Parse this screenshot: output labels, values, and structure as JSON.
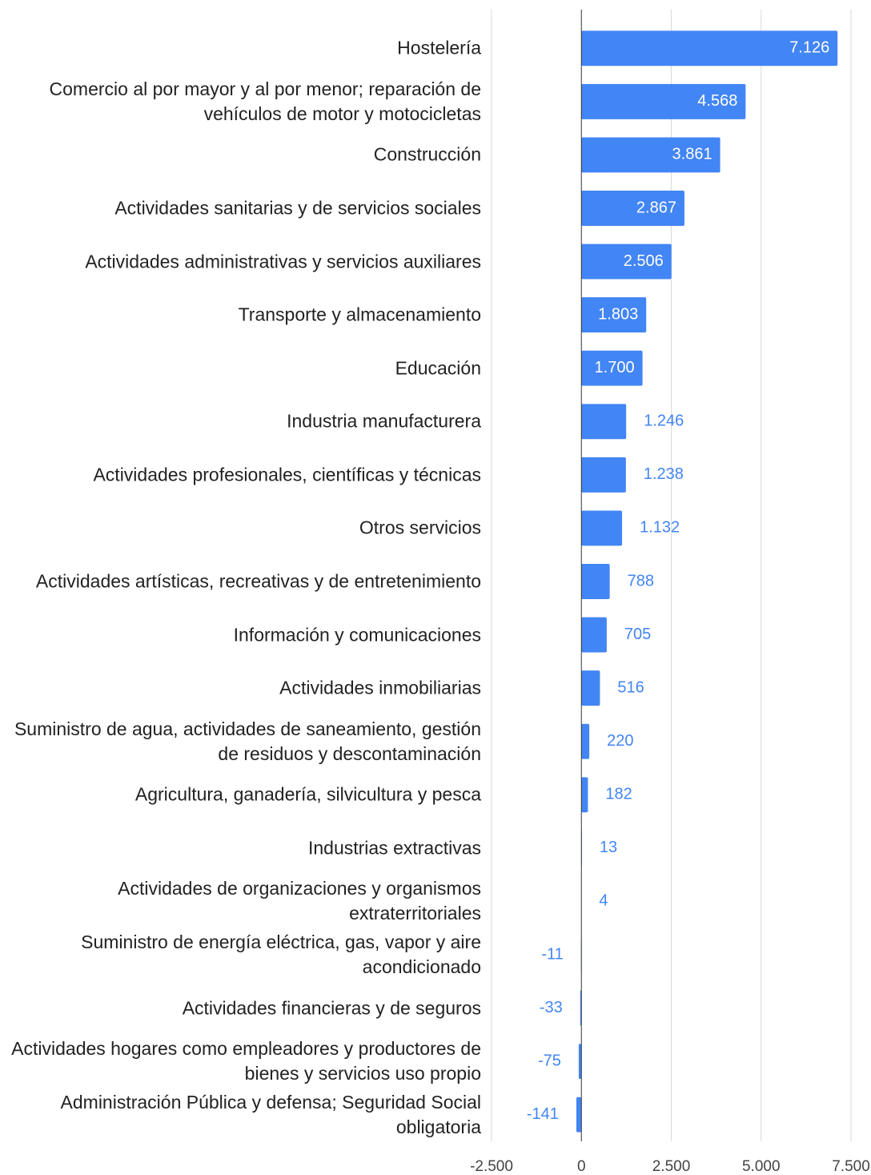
{
  "chart_data": {
    "type": "bar",
    "orientation": "horizontal",
    "categories": [
      "Hostelería",
      "Comercio al por mayor y al por menor; reparación de vehículos de motor y motocicletas",
      "Construcción",
      "Actividades sanitarias y de servicios sociales",
      "Actividades administrativas y servicios auxiliares",
      "Transporte y almacenamiento",
      "Educación",
      "Industria manufacturera",
      "Actividades profesionales, científicas y técnicas",
      "Otros servicios",
      "Actividades artísticas, recreativas y de entretenimiento",
      "Información y comunicaciones",
      "Actividades inmobiliarias",
      "Suministro de agua, actividades de saneamiento, gestión de residuos y descontaminación",
      "Agricultura, ganadería, silvicultura y pesca",
      "Industrias extractivas",
      "Actividades de organizaciones y organismos extraterritoriales",
      "Suministro de energía eléctrica, gas, vapor y aire acondicionado",
      "Actividades financieras y de seguros",
      "Actividades hogares como empleadores y productores de bienes y servicios uso propio",
      "Administración Pública y defensa; Seguridad Social obligatoria"
    ],
    "values": [
      7126,
      4568,
      3861,
      2867,
      2506,
      1803,
      1700,
      1246,
      1238,
      1132,
      788,
      705,
      516,
      220,
      182,
      13,
      4,
      -11,
      -33,
      -75,
      -141
    ],
    "value_labels": [
      "7.126",
      "4.568",
      "3.861",
      "2.867",
      "2.506",
      "1.803",
      "1.700",
      "1.246",
      "1.238",
      "1.132",
      "788",
      "705",
      "516",
      "220",
      "182",
      "13",
      "4",
      "-11",
      "-33",
      "-75",
      "-141"
    ],
    "color": "#4285f4",
    "xlim": [
      -2500,
      7500
    ],
    "xticks": [
      {
        "value": -2500,
        "label": "-2.500"
      },
      0,
      {
        "value": 2500,
        "label": "2.500"
      },
      {
        "value": 5000,
        "label": "5.000"
      },
      {
        "value": 7500,
        "label": "7.500"
      }
    ],
    "grid": true
  }
}
